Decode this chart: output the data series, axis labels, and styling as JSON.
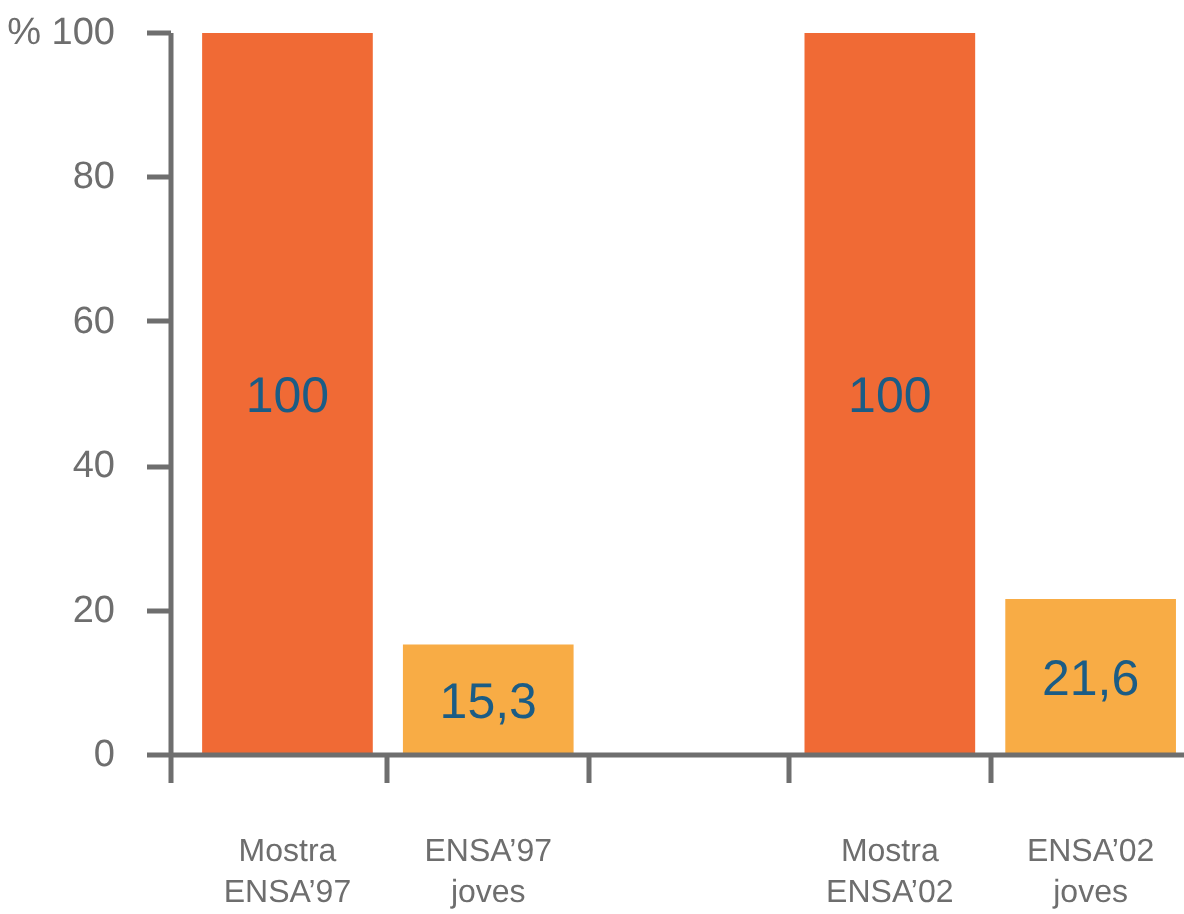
{
  "chart_data": {
    "type": "bar",
    "categories": [
      "Mostra\nENSA’97",
      "ENSA’97\njoves",
      null,
      "Mostra\nENSA’02",
      "ENSA’02\njoves"
    ],
    "values": [
      100,
      15.3,
      null,
      100,
      21.6
    ],
    "colors": [
      "#f06a35",
      "#f8ac45",
      null,
      "#f06a35",
      "#f8ac45"
    ],
    "value_labels": [
      "100",
      "15,3",
      null,
      "100",
      "21,6"
    ],
    "ylim": [
      0,
      100
    ],
    "yticks": [
      0,
      20,
      40,
      60,
      80,
      {
        "value": 100,
        "label": "% 100"
      }
    ],
    "grid": false
  }
}
